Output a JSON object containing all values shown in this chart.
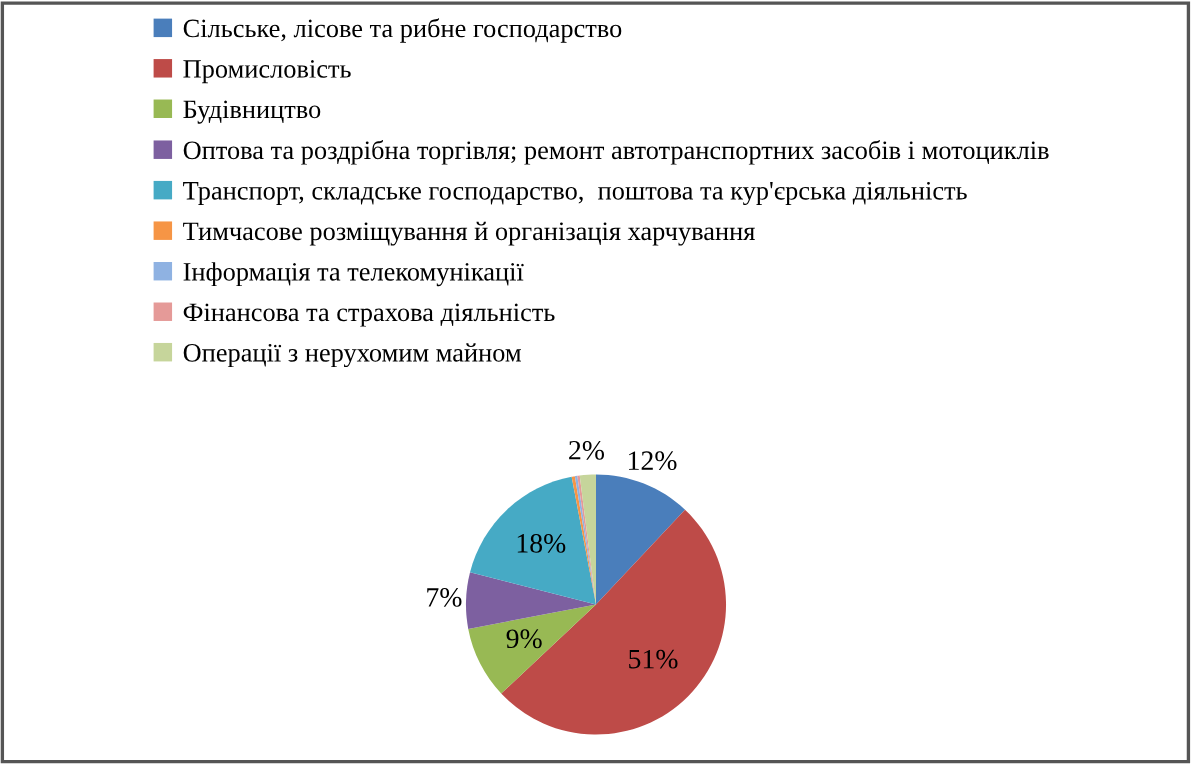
{
  "chart_data": {
    "type": "pie",
    "categories": [
      "Сільське, лісове та рибне господарство",
      "Промисловість",
      "Будівництво",
      "Оптова та роздрібна торгівля; ремонт автотранспортних засобів і мотоциклів",
      "Транспорт, складське господарство,  поштова та кур'єрська діяльність",
      "Тимчасове розміщування й організація харчування",
      "Інформація та телекомунікації",
      "Фінансова та страхова діяльність",
      "Операції з нерухомим майном"
    ],
    "values": [
      12,
      51,
      9,
      7,
      18,
      0.4,
      0.3,
      0.3,
      2
    ],
    "value_labels": [
      "12%",
      "51%",
      "9%",
      "7%",
      "18%",
      null,
      null,
      null,
      "2%"
    ],
    "colors": [
      "#4a7ebb",
      "#be4b48",
      "#98b954",
      "#7d60a0",
      "#46aac5",
      "#f69545",
      "#8fb2e2",
      "#e59a98",
      "#c6d59b"
    ],
    "legend": "top"
  }
}
